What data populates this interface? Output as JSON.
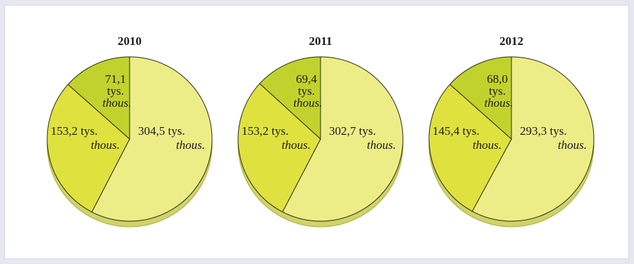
{
  "chart_data": [
    {
      "type": "pie",
      "title": "2010",
      "slices": [
        {
          "value": 304.5,
          "label": "304,5 tys.",
          "sublabel": "thous.",
          "color": "#eded88"
        },
        {
          "value": 153.2,
          "label": "153,2 tys.",
          "sublabel": "thous.",
          "color": "#dfe23e"
        },
        {
          "value": 71.1,
          "label": "71,1",
          "label2": "tys.",
          "sublabel": "thous.",
          "color": "#c2d22c"
        }
      ]
    },
    {
      "type": "pie",
      "title": "2011",
      "slices": [
        {
          "value": 302.7,
          "label": "302,7 tys.",
          "sublabel": "thous.",
          "color": "#eded88"
        },
        {
          "value": 153.2,
          "label": "153,2 tys.",
          "sublabel": "thous.",
          "color": "#dfe23e"
        },
        {
          "value": 69.4,
          "label": "69,4",
          "label2": "tys.",
          "sublabel": "thous.",
          "color": "#c2d22c"
        }
      ]
    },
    {
      "type": "pie",
      "title": "2012",
      "slices": [
        {
          "value": 293.3,
          "label": "293,3 tys.",
          "sublabel": "thous.",
          "color": "#eded88"
        },
        {
          "value": 145.4,
          "label": "145,4 tys.",
          "sublabel": "thous.",
          "color": "#dfe23e"
        },
        {
          "value": 68.0,
          "label": "68,0",
          "label2": "tys.",
          "sublabel": "thous.",
          "color": "#c2d22c"
        }
      ]
    }
  ],
  "colors": {
    "background": "#e6e6f0",
    "panel": "#ffffff",
    "edge": "#a8ac38",
    "depth": "#cfd36a"
  }
}
